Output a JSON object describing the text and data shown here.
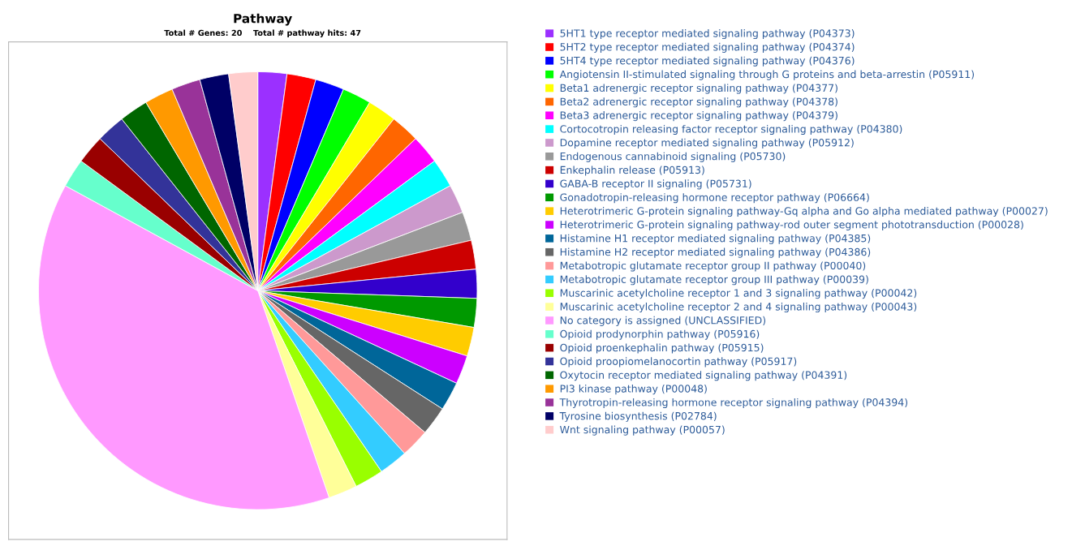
{
  "chart_data": {
    "type": "pie",
    "title": "Pathway",
    "subtitle": "Total # Genes: 20    Total # pathway hits: 47",
    "legend": "right",
    "categories": [
      "5HT1 type receptor mediated signaling pathway (P04373)",
      "5HT2 type receptor mediated signaling pathway (P04374)",
      "5HT4 type receptor mediated signaling pathway (P04376)",
      "Angiotensin II-stimulated signaling through G proteins and beta-arrestin (P05911)",
      "Beta1 adrenergic receptor signaling pathway (P04377)",
      "Beta2 adrenergic receptor signaling pathway (P04378)",
      "Beta3 adrenergic receptor signaling pathway (P04379)",
      "Cortocotropin releasing factor receptor signaling pathway (P04380)",
      "Dopamine receptor mediated signaling pathway (P05912)",
      "Endogenous cannabinoid signaling (P05730)",
      "Enkephalin release (P05913)",
      "GABA-B receptor II signaling (P05731)",
      "Gonadotropin-releasing hormone receptor pathway (P06664)",
      "Heterotrimeric G-protein signaling pathway-Gq alpha and Go alpha mediated pathway (P00027)",
      "Heterotrimeric G-protein signaling pathway-rod outer segment phototransduction (P00028)",
      "Histamine H1 receptor mediated signaling pathway (P04385)",
      "Histamine H2 receptor mediated signaling pathway (P04386)",
      "Metabotropic glutamate receptor group II pathway (P00040)",
      "Metabotropic glutamate receptor group III pathway (P00039)",
      "Muscarinic acetylcholine receptor 1 and 3 signaling pathway (P00042)",
      "Muscarinic acetylcholine receptor 2 and 4 signaling pathway (P00043)",
      "No category is assigned (UNCLASSIFIED)",
      "Opioid prodynorphin pathway (P05916)",
      "Opioid proenkephalin pathway (P05915)",
      "Opioid proopiomelanocortin pathway (P05917)",
      "Oxytocin receptor mediated signaling pathway (P04391)",
      "PI3 kinase pathway (P00048)",
      "Thyrotropin-releasing hormone receptor signaling pathway (P04394)",
      "Tyrosine biosynthesis (P02784)",
      "Wnt signaling pathway (P00057)"
    ],
    "values": [
      2.13,
      2.13,
      2.13,
      2.13,
      2.13,
      2.13,
      2.13,
      2.13,
      2.13,
      2.13,
      2.13,
      2.13,
      2.13,
      2.13,
      2.13,
      2.13,
      2.13,
      2.13,
      2.13,
      2.13,
      2.13,
      38.23,
      2.13,
      2.13,
      2.13,
      2.13,
      2.13,
      2.13,
      2.13,
      2.13
    ],
    "colors": [
      "#9b30ff",
      "#ff0000",
      "#0000ff",
      "#00ff00",
      "#ffff00",
      "#ff6600",
      "#ff00ff",
      "#00ffff",
      "#cc99cc",
      "#999999",
      "#cc0000",
      "#3300cc",
      "#009900",
      "#ffcc00",
      "#cc00ff",
      "#006699",
      "#666666",
      "#ff9999",
      "#33ccff",
      "#99ff00",
      "#ffff99",
      "#ff99ff",
      "#66ffcc",
      "#990000",
      "#333399",
      "#006600",
      "#ff9900",
      "#993399",
      "#000066",
      "#ffcccc"
    ]
  }
}
